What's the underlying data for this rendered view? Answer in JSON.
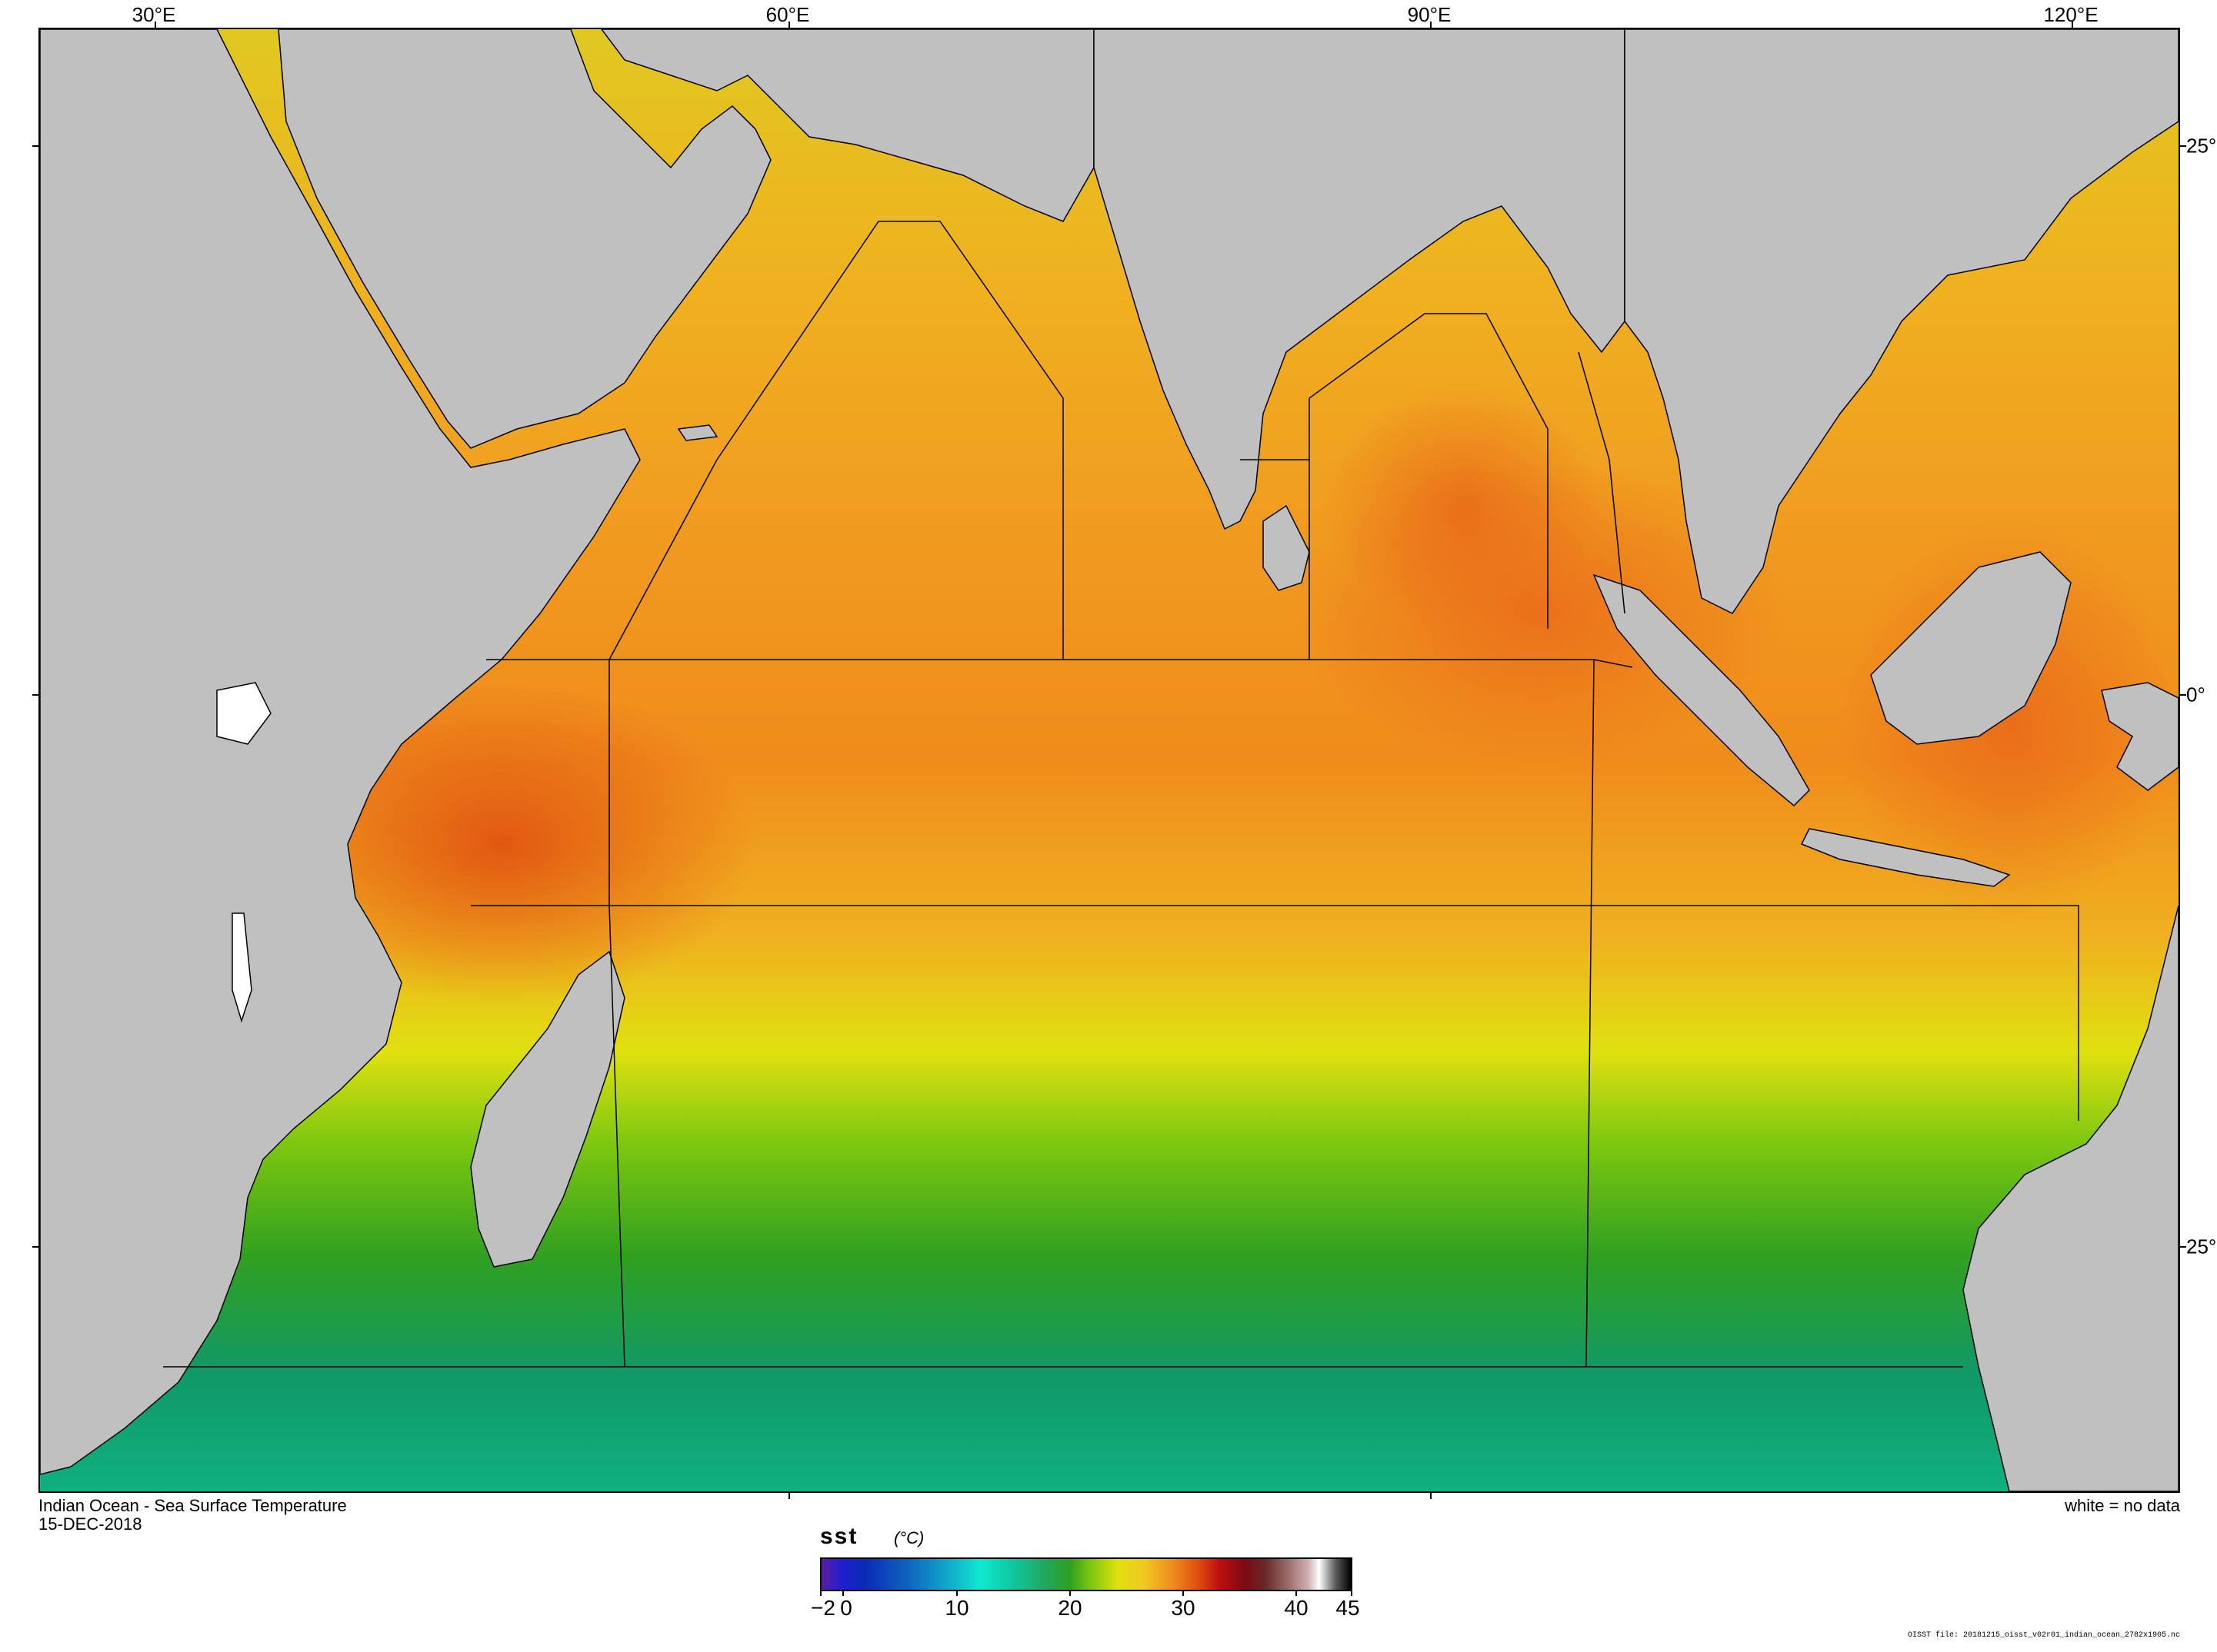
{
  "map": {
    "region": "Indian Ocean",
    "variable": "sst",
    "longitude_labels": [
      "30°E",
      "60°E",
      "90°E",
      "120°E"
    ],
    "latitude_labels": [
      "25°",
      "0°",
      "25°"
    ]
  },
  "footer": {
    "title": "Indian Ocean - Sea Surface Temperature",
    "date": "15-DEC-2018",
    "no_data_note": "white = no data",
    "file_note": "OISST file: 20181215_oisst_v02r01_indian_ocean_2782x1905.nc"
  },
  "colorbar": {
    "variable": "sst",
    "unit": "(°C)",
    "min": -2,
    "max": 45,
    "tick_labels": [
      "−2",
      "0",
      "10",
      "20",
      "30",
      "40",
      "45"
    ]
  },
  "colors": {
    "land": "#c0c0c0",
    "cool": "#10a070",
    "mid": "#80c810",
    "warm_yellow": "#e0e010",
    "warm_orange": "#f0a020",
    "hot": "#e05010"
  }
}
